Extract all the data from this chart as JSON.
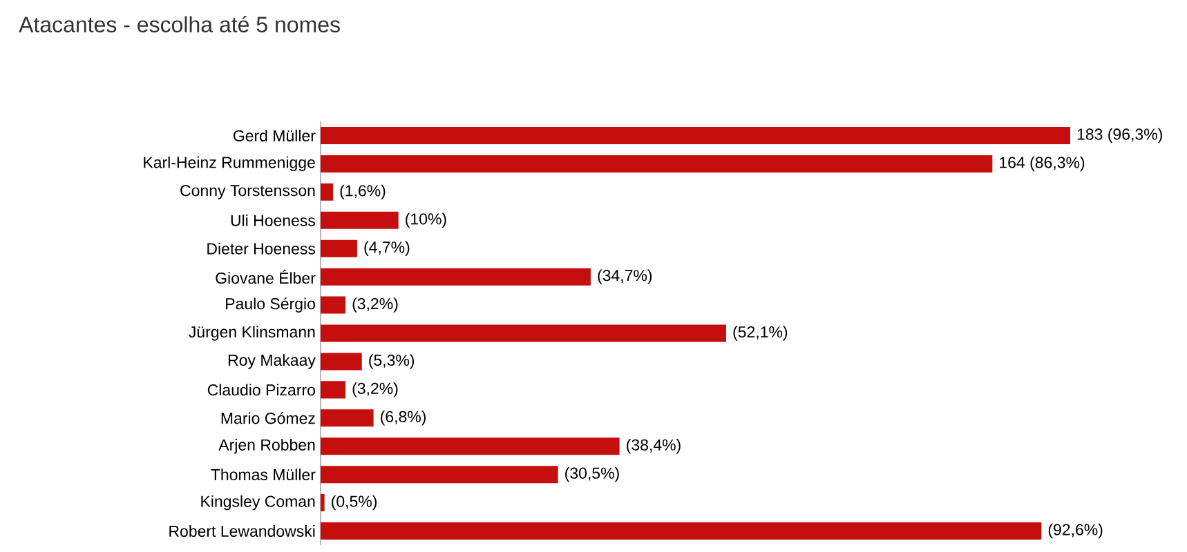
{
  "chart_data": {
    "type": "bar",
    "orientation": "horizontal",
    "title": "Atacantes - escolha até 5 nomes",
    "categories": [
      "Gerd Müller",
      "Karl-Heinz Rummenigge",
      "Conny Torstensson",
      "Uli Hoeness",
      "Dieter Hoeness",
      "Giovane Élber",
      "Paulo Sérgio",
      "Jürgen Klinsmann",
      "Roy Makaay",
      "Claudio Pizarro",
      "Mario Gómez",
      "Arjen Robben",
      "Thomas Müller",
      "Kingsley Coman",
      "Robert Lewandowski"
    ],
    "values": [
      96.3,
      86.3,
      1.6,
      10,
      4.7,
      34.7,
      3.2,
      52.1,
      5.3,
      3.2,
      6.8,
      38.4,
      30.5,
      0.5,
      92.6
    ],
    "value_labels": [
      "183 (96,3%)",
      "164 (86,3%)",
      "(1,6%)",
      "(10%)",
      "(4,7%)",
      "(34,7%)",
      "(3,2%)",
      "(52,1%)",
      "(5,3%)",
      "(3,2%)",
      "(6,8%)",
      "(38,4%)",
      "(30,5%)",
      "(0,5%)",
      "(92,6%)"
    ],
    "color": "#c50f0f",
    "tick_labels": "y"
  }
}
